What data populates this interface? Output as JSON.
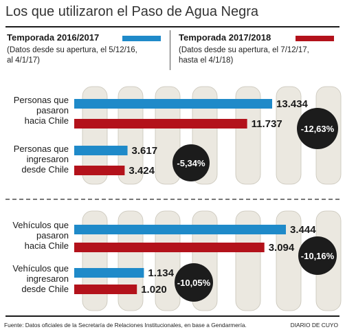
{
  "title": "Los que utilizaron el Paso de Agua Negra",
  "legend": {
    "season1": {
      "title": "Temporada 2016/2017",
      "note_line1": "(Datos desde su apertura, el 5/12/16,",
      "note_line2": "al 4/1/17)",
      "color": "#1f8ac9"
    },
    "season2": {
      "title": "Temporada 2017/2018",
      "note_line1": "(Datos desde su apertura, el 7/12/17,",
      "note_line2": "hasta el 4/1/18)",
      "color": "#b3121b"
    }
  },
  "footer": {
    "source": "Fuente: Datos oficiales de la Secretaría de Relaciones Institucionales, en base a Gendarmería.",
    "brand": "DIARIO DE CUYO"
  },
  "chart_data": [
    {
      "type": "bar",
      "orientation": "horizontal",
      "categories": [
        {
          "lines": [
            "Personas que",
            "pasaron",
            "hacia Chile"
          ]
        },
        {
          "lines": [
            "Personas que",
            "ingresaron",
            "desde Chile"
          ]
        }
      ],
      "series": [
        {
          "name": "Temporada 2016/2017",
          "values": [
            13434,
            3617
          ],
          "labels": [
            "13.434",
            "3.617"
          ]
        },
        {
          "name": "Temporada 2017/2018",
          "values": [
            11737,
            3424
          ],
          "labels": [
            "11.737",
            "3.424"
          ]
        }
      ],
      "changes": [
        "-12,63%",
        "-5,34%"
      ],
      "xlim": [
        0,
        13434
      ]
    },
    {
      "type": "bar",
      "orientation": "horizontal",
      "categories": [
        {
          "lines": [
            "Vehículos que",
            "pasaron",
            "hacia Chile"
          ]
        },
        {
          "lines": [
            "Vehículos que",
            "ingresaron",
            "desde Chile"
          ]
        }
      ],
      "series": [
        {
          "name": "Temporada 2016/2017",
          "values": [
            3444,
            1134
          ],
          "labels": [
            "3.444",
            "1.134"
          ]
        },
        {
          "name": "Temporada 2017/2018",
          "values": [
            3094,
            1020
          ],
          "labels": [
            "3.094",
            "1.020"
          ]
        }
      ],
      "changes": [
        "-10,16%",
        "-10,05%"
      ],
      "xlim": [
        0,
        3444
      ]
    }
  ]
}
